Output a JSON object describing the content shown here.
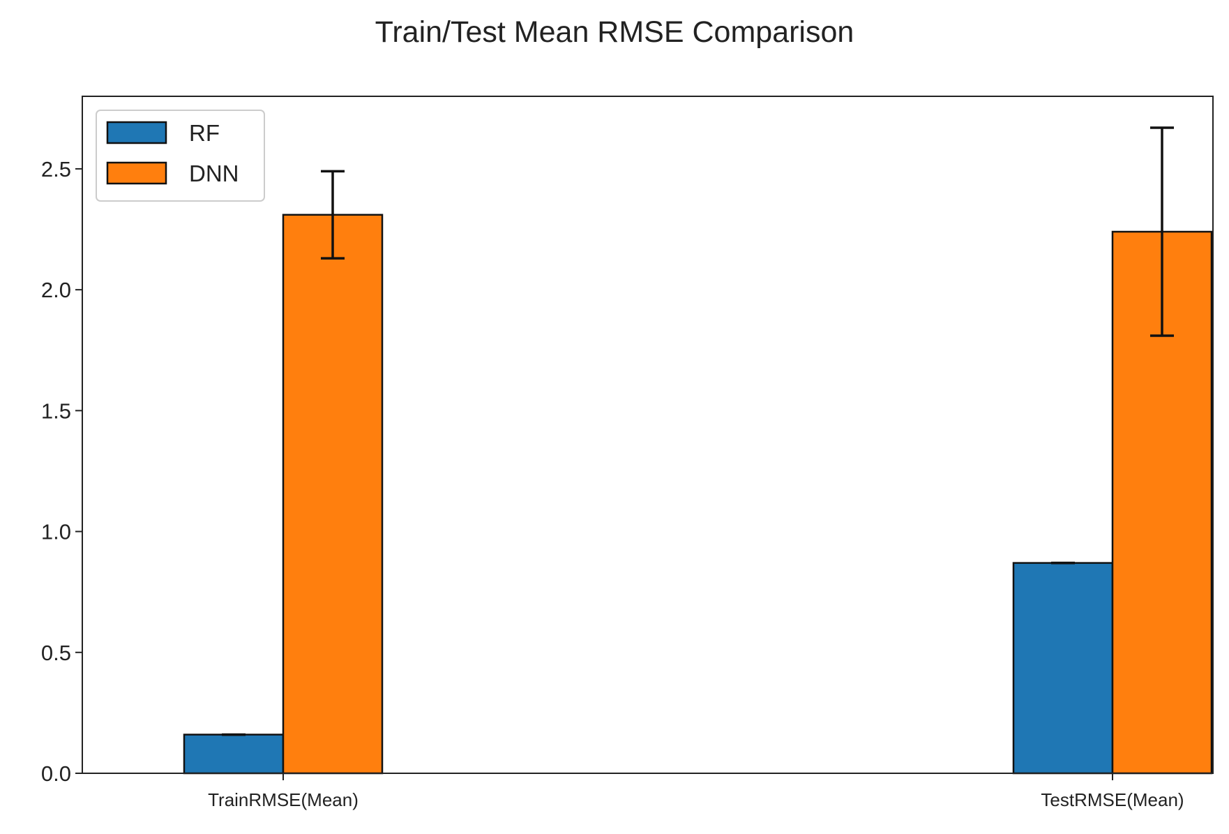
{
  "chart_data": {
    "type": "bar",
    "title": "Train/Test Mean RMSE Comparison",
    "xlabel": "",
    "ylabel": "",
    "categories": [
      "TrainRMSE(Mean)",
      "TestRMSE(Mean)"
    ],
    "series": [
      {
        "name": "RF",
        "color": "#1f77b4",
        "values": [
          0.16,
          0.87
        ],
        "errors": [
          0.0,
          0.0
        ]
      },
      {
        "name": "DNN",
        "color": "#ff7f0e",
        "values": [
          2.31,
          2.24
        ],
        "errors": [
          0.18,
          0.43
        ]
      }
    ],
    "ylim": [
      0,
      2.8
    ],
    "yticks": [
      "0.0",
      "0.5",
      "1.0",
      "1.5",
      "2.0",
      "2.5"
    ],
    "legend": "top-left",
    "grid": false
  }
}
